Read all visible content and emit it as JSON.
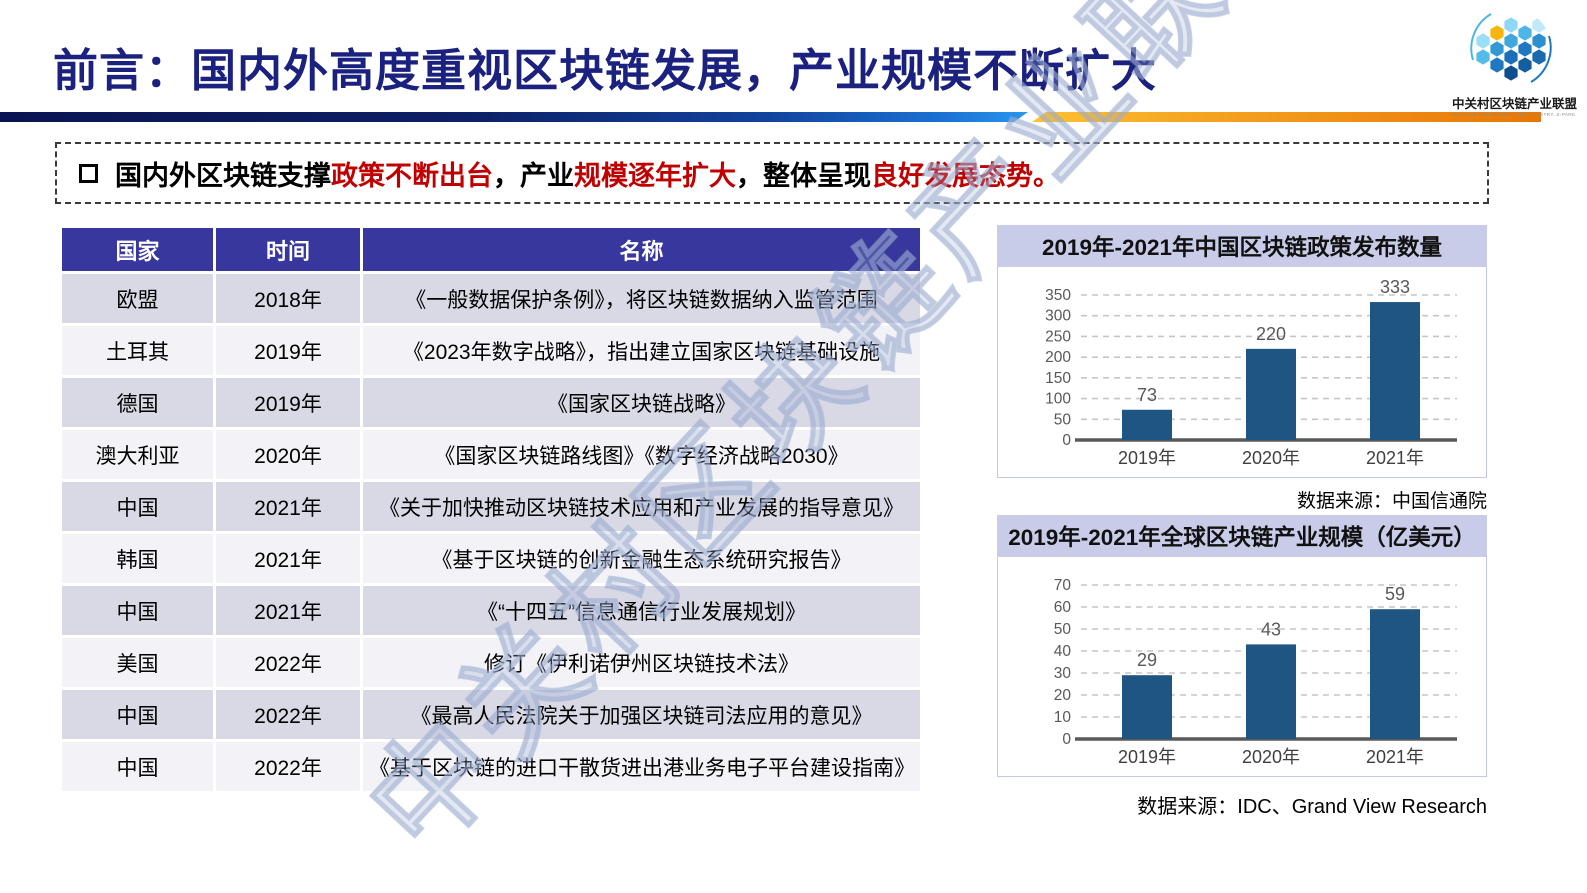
{
  "header": {
    "title": "前言：国内外高度重视区块链发展，产业规模不断扩大",
    "logo": {
      "name": "中关村区块链产业联盟",
      "subtitle": "ALLIANCE FOR BLOCKCHAIN INDUSTRY, Z-PARK"
    }
  },
  "highlight": {
    "segments": [
      {
        "text": "国内外区块链支撑",
        "emphasis": false
      },
      {
        "text": "政策不断出台",
        "emphasis": true
      },
      {
        "text": "，产业",
        "emphasis": false
      },
      {
        "text": "规模逐年扩大",
        "emphasis": true
      },
      {
        "text": "，整体呈现",
        "emphasis": false
      },
      {
        "text": "良好发展态势。",
        "emphasis": true
      }
    ]
  },
  "policy_table": {
    "headers": [
      "国家",
      "时间",
      "名称"
    ],
    "rows": [
      {
        "country": "欧盟",
        "year": "2018年",
        "name": "《一般数据保护条例》，将区块链数据纳入监管范围"
      },
      {
        "country": "土耳其",
        "year": "2019年",
        "name": "《2023年数字战略》，指出建立国家区块链基础设施"
      },
      {
        "country": "德国",
        "year": "2019年",
        "name": "《国家区块链战略》"
      },
      {
        "country": "澳大利亚",
        "year": "2020年",
        "name": "《国家区块链路线图》《数字经济战略2030》"
      },
      {
        "country": "中国",
        "year": "2021年",
        "name": "《关于加快推动区块链技术应用和产业发展的指导意见》"
      },
      {
        "country": "韩国",
        "year": "2021年",
        "name": "《基于区块链的创新金融生态系统研究报告》"
      },
      {
        "country": "中国",
        "year": "2021年",
        "name": "《“十四五”信息通信行业发展规划》"
      },
      {
        "country": "美国",
        "year": "2022年",
        "name": "修订《伊利诺伊州区块链技术法》"
      },
      {
        "country": "中国",
        "year": "2022年",
        "name": "《最高人民法院关于加强区块链司法应用的意见》"
      },
      {
        "country": "中国",
        "year": "2022年",
        "name": "《基于区块链的进口干散货进出港业务电子平台建设指南》"
      }
    ]
  },
  "chart_data": [
    {
      "type": "bar",
      "title": "2019年-2021年中国区块链政策发布数量",
      "categories": [
        "2019年",
        "2020年",
        "2021年"
      ],
      "values": [
        73,
        220,
        333
      ],
      "ylim": [
        0,
        350
      ],
      "ytick_step": 50,
      "grid": "dashed",
      "legend": "none",
      "bar_color": "#1F5582",
      "source": "数据来源：中国信通院"
    },
    {
      "type": "bar",
      "title": "2019年-2021年全球区块链产业规模（亿美元）",
      "categories": [
        "2019年",
        "2020年",
        "2021年"
      ],
      "values": [
        29,
        43,
        59
      ],
      "ylim": [
        0,
        70
      ],
      "ytick_step": 10,
      "grid": "dashed",
      "legend": "none",
      "bar_color": "#1F5582",
      "source": "数据来源：IDC、Grand View Research"
    }
  ],
  "watermark": "中关村区块链产业联盟",
  "colors": {
    "title_navy": "#1B217F",
    "emphasis_red": "#C00000",
    "table_header_bg": "#37379E",
    "row_alt_bg": "#D9D9E6",
    "chart_banner_bg": "#C8CCE8",
    "bar_blue": "#1F5582",
    "divider_blue": "#0D1F66",
    "divider_orange": "#E87704"
  }
}
